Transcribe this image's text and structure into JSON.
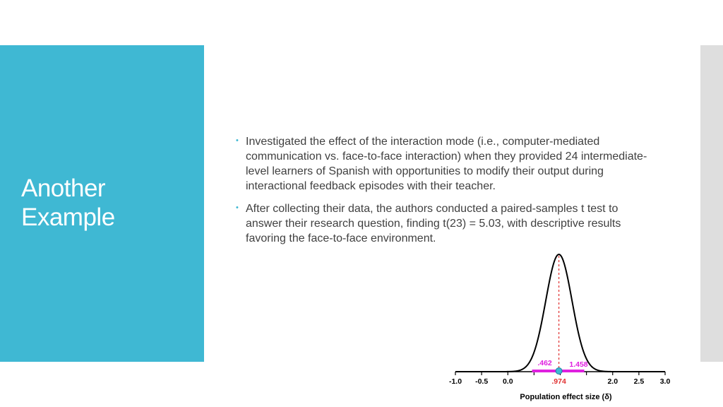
{
  "slide": {
    "title_line1": "Another",
    "title_line2": "Example",
    "bullets": [
      "Investigated the effect of the interaction mode (i.e., computer-mediated communication vs. face-to-face interaction) when they provided 24 intermediate-level learners of Spanish with opportunities to modify their output during interactional feedback episodes with their teacher.",
      "After collecting their data, the authors conducted a paired-samples t test to answer their research question, finding t(23) = 5.03, with descriptive results favoring the face-to-face environment."
    ],
    "bullet_marker": "•"
  },
  "colors": {
    "accent": "#3fb8d3",
    "text": "#404040",
    "ci_color": "#e020e0",
    "estimate_color": "#e03030",
    "point_color": "#3fb8d3"
  },
  "chart_data": {
    "type": "line",
    "xlabel": "Population effect size (δ)",
    "ylabel": "",
    "xlim": [
      -1.0,
      3.0
    ],
    "xticks": [
      -1.0,
      -0.5,
      0.0,
      0.5,
      1.0,
      1.5,
      2.0,
      2.5,
      3.0
    ],
    "xtick_labels": [
      "-1.0",
      "-0.5",
      "0.0",
      "",
      "",
      "",
      "2.0",
      "2.5",
      "3.0"
    ],
    "curve": {
      "kind": "normal",
      "mean": 0.974,
      "sd": 0.25
    },
    "point_estimate": 0.974,
    "ci_lower": 0.462,
    "ci_upper": 1.458,
    "annotations": {
      "point": ".974",
      "lower": ".462",
      "upper": "1.458"
    }
  }
}
